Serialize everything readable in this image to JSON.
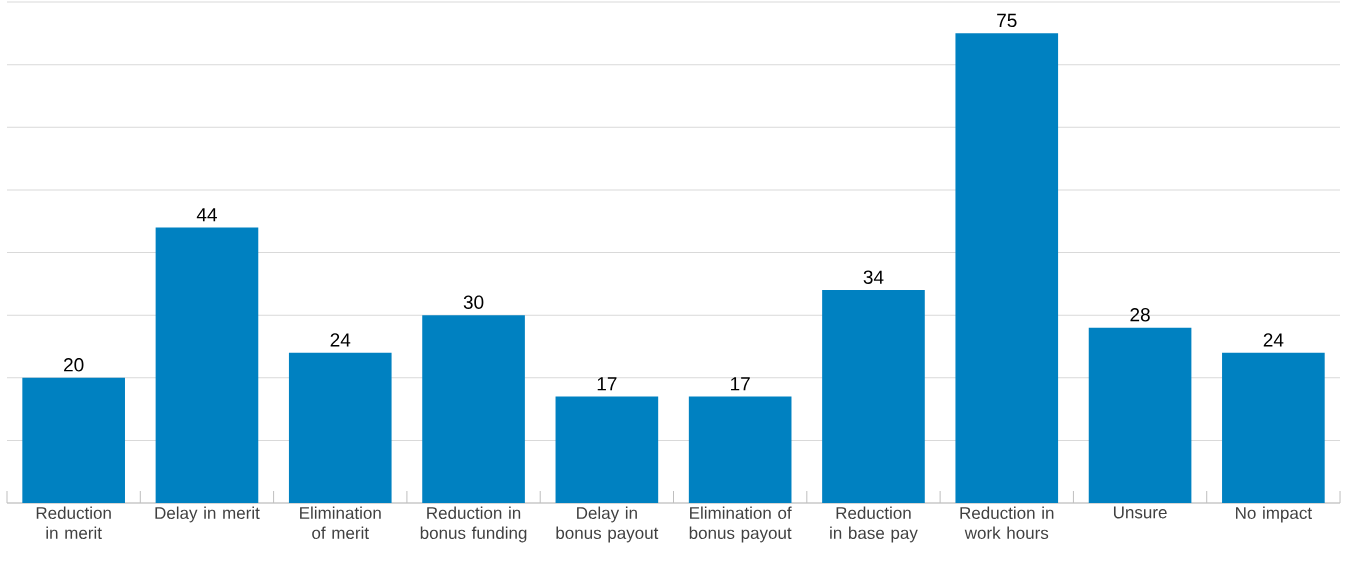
{
  "chart_data": {
    "type": "bar",
    "categories": [
      "Reduction in merit",
      "Delay in merit",
      "Elimination of merit",
      "Reduction in bonus funding",
      "Delay in bonus payout",
      "Elimination of bonus payout",
      "Reduction in base pay",
      "Reduction in work hours",
      "Unsure",
      "No impact"
    ],
    "values": [
      20,
      44,
      24,
      30,
      17,
      17,
      34,
      75,
      28,
      24
    ],
    "color": "#0081c1",
    "ylim": [
      0,
      80
    ],
    "yticks": [
      {
        "value": 0,
        "label": null
      },
      {
        "value": 10,
        "label": null
      },
      {
        "value": 20,
        "label": null
      },
      {
        "value": 30,
        "label": null
      },
      {
        "value": 40,
        "label": null
      },
      {
        "value": 50,
        "label": null
      },
      {
        "value": 60,
        "label": null
      },
      {
        "value": 70,
        "label": null
      },
      {
        "value": 80,
        "label": null
      }
    ],
    "grid": "y",
    "tick_labels": "x",
    "data_labels": true
  }
}
